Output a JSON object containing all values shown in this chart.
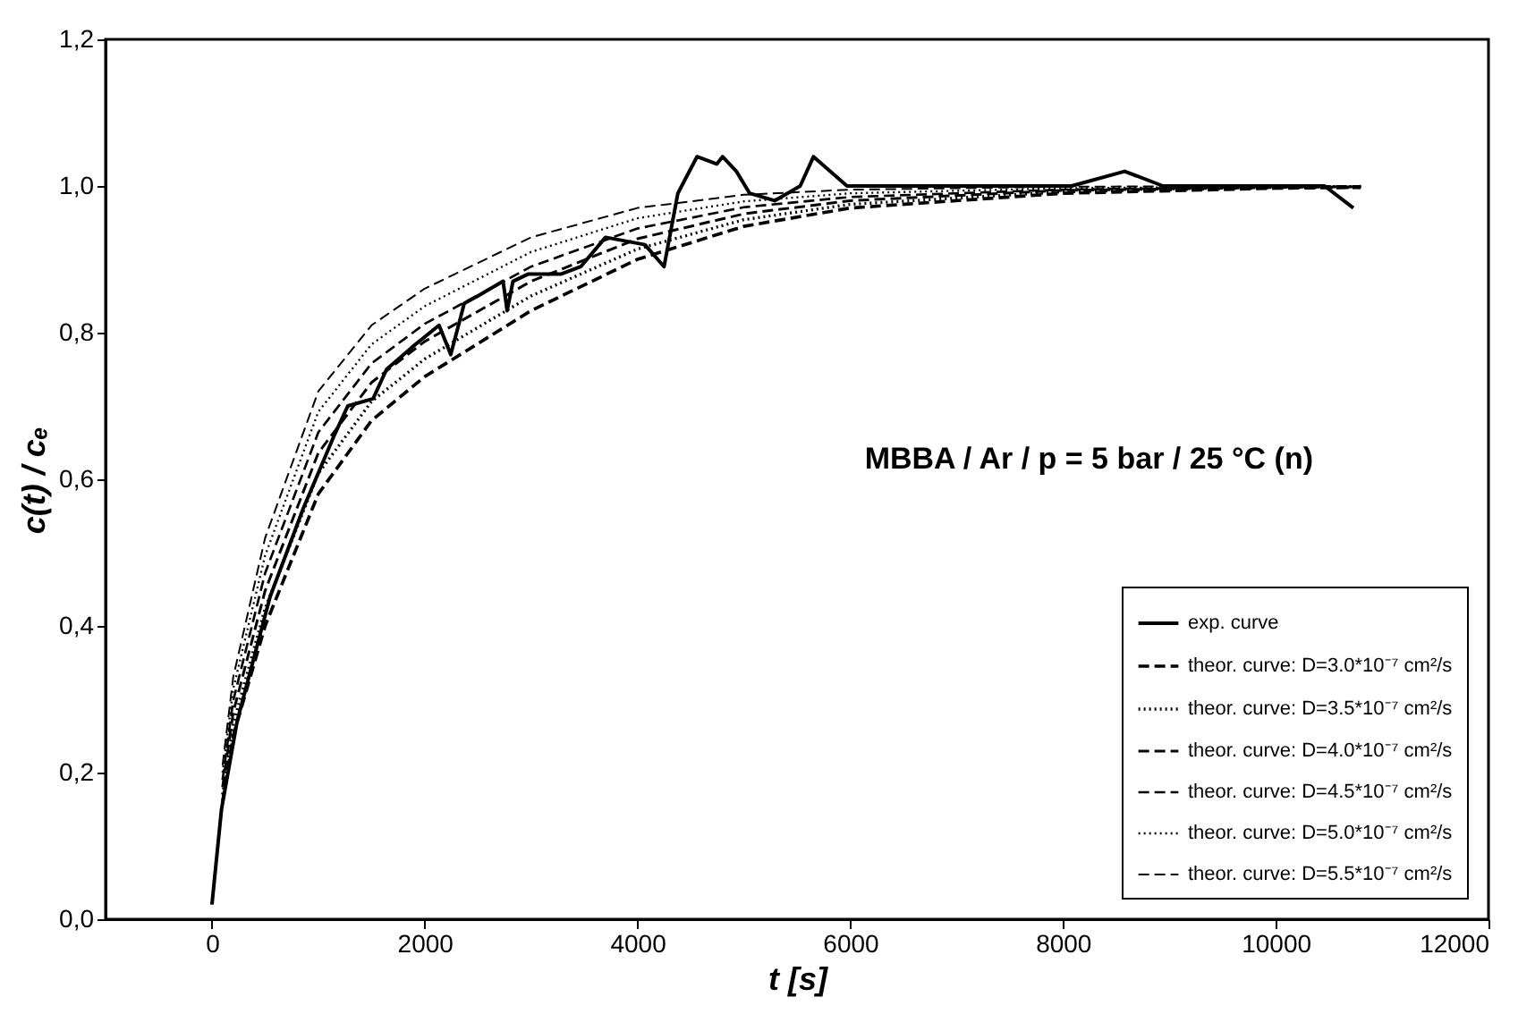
{
  "chart_data": {
    "type": "line",
    "xlabel": "t [s]",
    "ylabel": "c(t) / cₑ",
    "xlim": [
      -1000,
      12000
    ],
    "xticks": [
      0,
      2000,
      4000,
      6000,
      8000,
      10000,
      12000
    ],
    "ylim": [
      0,
      1.2
    ],
    "yticks": [
      {
        "value": 0,
        "label": "0,0"
      },
      {
        "value": 0.2,
        "label": "0,2"
      },
      {
        "value": 0.4,
        "label": "0,4"
      },
      {
        "value": 0.6,
        "label": "0,6"
      },
      {
        "value": 0.8,
        "label": "0,8"
      },
      {
        "value": 1.0,
        "label": "1,0"
      },
      {
        "value": 1.2,
        "label": "1,2"
      }
    ],
    "grid": false,
    "legend": "bottom right",
    "marker": "none",
    "annotations": [
      "MBBA / Ar / p = 5 bar / 25 °C (n)"
    ],
    "series": [
      {
        "name": "exp. curve",
        "color": "#000000",
        "line_style": "solid",
        "x": [
          0,
          90,
          237,
          547,
          858,
          1150,
          1277,
          1515,
          1642,
          1880,
          2135,
          2245,
          2372,
          2500,
          2737,
          2775,
          2830,
          2975,
          3285,
          3467,
          3700,
          4070,
          4250,
          4380,
          4560,
          4745,
          4800,
          4930,
          5055,
          5290,
          5530,
          5655,
          5970,
          8080,
          8580,
          8940,
          10460,
          10730
        ],
        "values": [
          0.02,
          0.15,
          0.27,
          0.44,
          0.56,
          0.66,
          0.7,
          0.71,
          0.75,
          0.78,
          0.81,
          0.77,
          0.84,
          0.85,
          0.87,
          0.83,
          0.87,
          0.88,
          0.88,
          0.89,
          0.93,
          0.92,
          0.89,
          0.99,
          1.04,
          1.03,
          1.04,
          1.02,
          0.99,
          0.98,
          1.0,
          1.04,
          1.0,
          1.0,
          1.02,
          1.0,
          1.0,
          0.97
        ]
      },
      {
        "name": "theor. curve: D=3.0*10⁻⁷ cm²/s",
        "color": "#000000",
        "line_style": "dashed",
        "x": [
          100,
          200,
          500,
          1000,
          1500,
          2000,
          3000,
          4000,
          5000,
          6000,
          8000,
          10000,
          10800
        ],
        "values": [
          0.16,
          0.25,
          0.4,
          0.58,
          0.68,
          0.74,
          0.83,
          0.9,
          0.945,
          0.97,
          0.99,
          0.997,
          0.998
        ]
      },
      {
        "name": "theor. curve: D=3.5*10⁻⁷ cm²/s",
        "color": "#000000",
        "line_style": "dotted",
        "x": [
          100,
          200,
          500,
          1000,
          1500,
          2000,
          3000,
          4000,
          5000,
          6000,
          8000,
          10000,
          10800
        ],
        "values": [
          0.17,
          0.266,
          0.424,
          0.608,
          0.706,
          0.764,
          0.85,
          0.914,
          0.954,
          0.975,
          0.992,
          0.998,
          0.998
        ]
      },
      {
        "name": "theor. curve: D=4.0*10⁻⁷ cm²/s",
        "color": "#000000",
        "line_style": "dashed",
        "x": [
          100,
          200,
          500,
          1000,
          1500,
          2000,
          3000,
          4000,
          5000,
          6000,
          8000,
          10000,
          10800
        ],
        "values": [
          0.18,
          0.282,
          0.448,
          0.636,
          0.732,
          0.788,
          0.87,
          0.928,
          0.962,
          0.98,
          0.994,
          0.998,
          0.999
        ]
      },
      {
        "name": "theor. curve: D=4.5*10⁻⁷ cm²/s",
        "color": "#000000",
        "line_style": "dashed",
        "x": [
          100,
          200,
          500,
          1000,
          1500,
          2000,
          3000,
          4000,
          5000,
          6000,
          8000,
          10000,
          10800
        ],
        "values": [
          0.19,
          0.298,
          0.472,
          0.664,
          0.758,
          0.812,
          0.89,
          0.942,
          0.971,
          0.985,
          0.995,
          0.999,
          0.999
        ]
      },
      {
        "name": "theor. curve: D=5.0*10⁻⁷ cm²/s",
        "color": "#000000",
        "line_style": "dotted",
        "x": [
          100,
          200,
          500,
          1000,
          1500,
          2000,
          3000,
          4000,
          5000,
          6000,
          8000,
          10000,
          10800
        ],
        "values": [
          0.2,
          0.314,
          0.496,
          0.692,
          0.784,
          0.836,
          0.91,
          0.956,
          0.979,
          0.99,
          0.997,
          0.999,
          1.0
        ]
      },
      {
        "name": "theor. curve: D=5.5*10⁻⁷ cm²/s",
        "color": "#000000",
        "line_style": "dashed",
        "x": [
          100,
          200,
          500,
          1000,
          1500,
          2000,
          3000,
          4000,
          5000,
          6000,
          8000,
          10000,
          10800
        ],
        "values": [
          0.21,
          0.33,
          0.52,
          0.72,
          0.81,
          0.86,
          0.93,
          0.97,
          0.988,
          0.995,
          0.999,
          1.0,
          1.0
        ]
      }
    ]
  }
}
